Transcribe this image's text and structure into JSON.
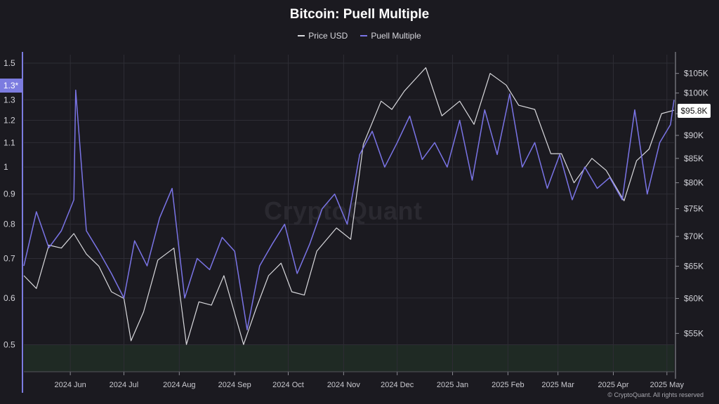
{
  "chart_data": {
    "type": "line",
    "title": "Bitcoin: Puell Multiple",
    "legend_position": "top-center",
    "grid": true,
    "x_range": [
      "2024-05-06",
      "2025-05-05"
    ],
    "x_ticks": [
      "2024 Jun",
      "2024 Jul",
      "2024 Aug",
      "2024 Sep",
      "2024 Oct",
      "2024 Nov",
      "2024 Dec",
      "2025 Jan",
      "2025 Feb",
      "2025 Mar",
      "2025 Apr",
      "2025 May"
    ],
    "y_left": {
      "scale": "log",
      "range": [
        0.45,
        1.55
      ],
      "ticks": [
        "0.5",
        "0.6",
        "0.7",
        "0.8",
        "0.9",
        "1",
        "1.1",
        "1.2",
        "1.3",
        "1.5"
      ],
      "current_label": "1.3*"
    },
    "y_right": {
      "scale": "log",
      "range": [
        50000,
        110000
      ],
      "ticks": [
        "$55K",
        "$60K",
        "$65K",
        "$70K",
        "$75K",
        "$80K",
        "$85K",
        "$90K",
        "$95K",
        "$100K",
        "$105K"
      ],
      "current_label": "$95.8K"
    },
    "highlight_band": {
      "from": 0.45,
      "to": 0.5,
      "color": "#1f2a24"
    },
    "series": [
      {
        "name": "Price USD",
        "axis": "right",
        "color": "#d9d9dd",
        "points": [
          [
            "2024-05-06",
            63500
          ],
          [
            "2024-05-13",
            61500
          ],
          [
            "2024-05-20",
            68500
          ],
          [
            "2024-05-27",
            68000
          ],
          [
            "2024-06-03",
            70500
          ],
          [
            "2024-06-10",
            67000
          ],
          [
            "2024-06-17",
            65000
          ],
          [
            "2024-06-24",
            61000
          ],
          [
            "2024-07-01",
            60000
          ],
          [
            "2024-07-05",
            54000
          ],
          [
            "2024-07-12",
            58000
          ],
          [
            "2024-07-20",
            66000
          ],
          [
            "2024-07-29",
            68000
          ],
          [
            "2024-08-05",
            53500
          ],
          [
            "2024-08-12",
            59500
          ],
          [
            "2024-08-19",
            59000
          ],
          [
            "2024-08-26",
            63500
          ],
          [
            "2024-09-06",
            53500
          ],
          [
            "2024-09-13",
            58500
          ],
          [
            "2024-09-20",
            63500
          ],
          [
            "2024-09-27",
            65500
          ],
          [
            "2024-10-03",
            61000
          ],
          [
            "2024-10-10",
            60500
          ],
          [
            "2024-10-17",
            67500
          ],
          [
            "2024-10-28",
            71500
          ],
          [
            "2024-11-05",
            69500
          ],
          [
            "2024-11-12",
            88000
          ],
          [
            "2024-11-22",
            98000
          ],
          [
            "2024-11-28",
            96000
          ],
          [
            "2024-12-05",
            100500
          ],
          [
            "2024-12-17",
            106500
          ],
          [
            "2024-12-26",
            94500
          ],
          [
            "2025-01-05",
            98000
          ],
          [
            "2025-01-13",
            92500
          ],
          [
            "2025-01-22",
            105000
          ],
          [
            "2025-01-31",
            102000
          ],
          [
            "2025-02-07",
            97000
          ],
          [
            "2025-02-16",
            96000
          ],
          [
            "2025-02-25",
            86000
          ],
          [
            "2025-03-03",
            86000
          ],
          [
            "2025-03-10",
            80000
          ],
          [
            "2025-03-20",
            85000
          ],
          [
            "2025-03-28",
            82500
          ],
          [
            "2025-04-07",
            76500
          ],
          [
            "2025-04-14",
            84500
          ],
          [
            "2025-04-21",
            87000
          ],
          [
            "2025-04-28",
            95000
          ],
          [
            "2025-05-05",
            95800
          ]
        ]
      },
      {
        "name": "Puell Multiple",
        "axis": "left",
        "color": "#7a74e6",
        "points": [
          [
            "2024-05-06",
            0.68
          ],
          [
            "2024-05-13",
            0.84
          ],
          [
            "2024-05-20",
            0.73
          ],
          [
            "2024-05-27",
            0.78
          ],
          [
            "2024-06-03",
            0.88
          ],
          [
            "2024-06-04",
            1.35
          ],
          [
            "2024-06-10",
            0.78
          ],
          [
            "2024-06-17",
            0.72
          ],
          [
            "2024-06-24",
            0.66
          ],
          [
            "2024-07-01",
            0.6
          ],
          [
            "2024-07-07",
            0.75
          ],
          [
            "2024-07-14",
            0.68
          ],
          [
            "2024-07-21",
            0.82
          ],
          [
            "2024-07-28",
            0.92
          ],
          [
            "2024-08-04",
            0.6
          ],
          [
            "2024-08-11",
            0.7
          ],
          [
            "2024-08-18",
            0.67
          ],
          [
            "2024-08-25",
            0.76
          ],
          [
            "2024-09-01",
            0.72
          ],
          [
            "2024-09-08",
            0.53
          ],
          [
            "2024-09-15",
            0.68
          ],
          [
            "2024-09-22",
            0.74
          ],
          [
            "2024-09-29",
            0.8
          ],
          [
            "2024-10-06",
            0.66
          ],
          [
            "2024-10-13",
            0.74
          ],
          [
            "2024-10-20",
            0.85
          ],
          [
            "2024-10-27",
            0.9
          ],
          [
            "2024-11-03",
            0.8
          ],
          [
            "2024-11-10",
            1.05
          ],
          [
            "2024-11-17",
            1.15
          ],
          [
            "2024-11-24",
            1.0
          ],
          [
            "2024-12-01",
            1.1
          ],
          [
            "2024-12-08",
            1.22
          ],
          [
            "2024-12-15",
            1.03
          ],
          [
            "2024-12-22",
            1.1
          ],
          [
            "2024-12-29",
            1.0
          ],
          [
            "2025-01-05",
            1.2
          ],
          [
            "2025-01-12",
            0.95
          ],
          [
            "2025-01-19",
            1.25
          ],
          [
            "2025-01-26",
            1.05
          ],
          [
            "2025-02-02",
            1.33
          ],
          [
            "2025-02-09",
            1.0
          ],
          [
            "2025-02-16",
            1.1
          ],
          [
            "2025-02-23",
            0.92
          ],
          [
            "2025-03-02",
            1.05
          ],
          [
            "2025-03-09",
            0.88
          ],
          [
            "2025-03-16",
            1.0
          ],
          [
            "2025-03-23",
            0.92
          ],
          [
            "2025-03-30",
            0.96
          ],
          [
            "2025-04-06",
            0.88
          ],
          [
            "2025-04-13",
            1.25
          ],
          [
            "2025-04-20",
            0.9
          ],
          [
            "2025-04-27",
            1.1
          ],
          [
            "2025-05-03",
            1.18
          ],
          [
            "2025-05-05",
            1.3
          ]
        ]
      }
    ]
  },
  "watermark": "CryptoQuant",
  "copyright": "© CryptoQuant. All rights reserved",
  "colors": {
    "background": "#1b1a20",
    "grid": "#2e2d35",
    "price": "#d9d9dd",
    "puell": "#7a74e6",
    "badge_left": "#7c7ce0"
  }
}
